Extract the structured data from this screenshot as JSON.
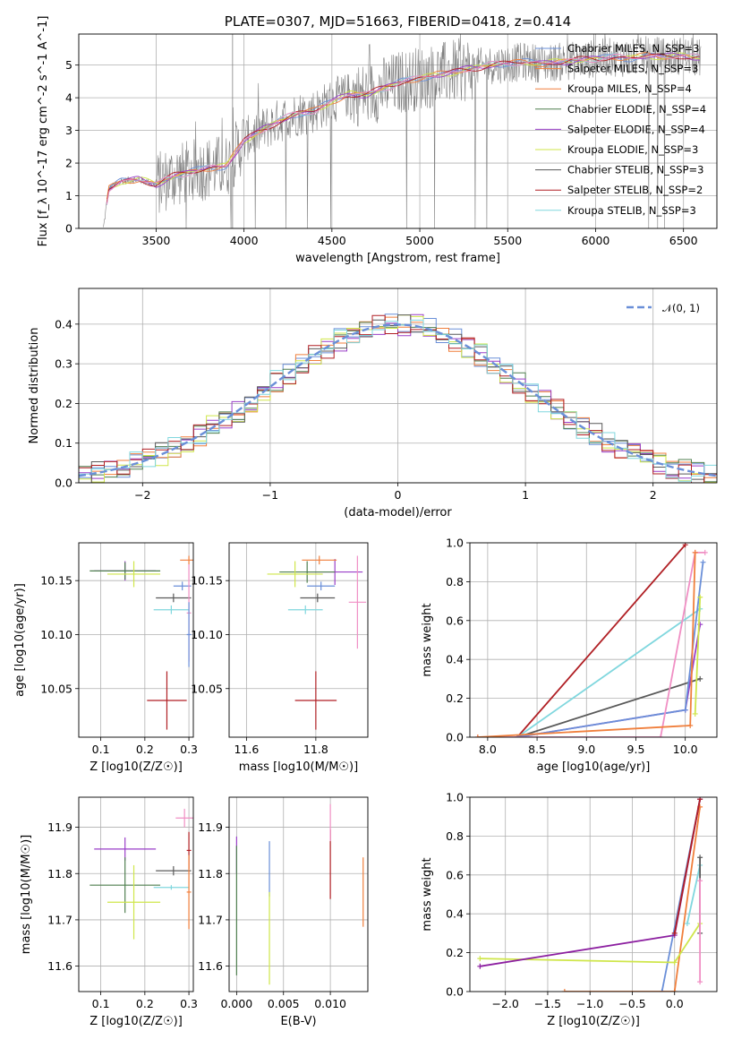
{
  "colors": {
    "c0": "#6a8fd8",
    "c1": "#f07f3c",
    "c2": "#4f7f4f",
    "c3": "#9a3fc8",
    "c4": "#cfe64a",
    "c5": "#595959",
    "c6": "#b01f24",
    "c7": "#80d7de",
    "c8": "#f08fc4",
    "grid": "#b0b0b0",
    "gray": "#808080",
    "purple": "#8c1fa0"
  },
  "legend_series": [
    {
      "label": "Chabrier MILES, N_SSP=3",
      "color": "c0"
    },
    {
      "label": "Salpeter MILES, N_SSP=3",
      "color": "c1"
    },
    {
      "label": "Kroupa MILES, N_SSP=4",
      "color": "c1"
    },
    {
      "label": "Chabrier ELODIE, N_SSP=4",
      "color": "c2"
    },
    {
      "label": "Salpeter ELODIE, N_SSP=4",
      "color": "c3"
    },
    {
      "label": "Kroupa ELODIE, N_SSP=3",
      "color": "c4"
    },
    {
      "label": "Chabrier STELIB, N_SSP=3",
      "color": "c5"
    },
    {
      "label": "Salpeter STELIB, N_SSP=2",
      "color": "c6"
    },
    {
      "label": "Kroupa STELIB, N_SSP=3",
      "color": "c7"
    }
  ],
  "chart_data": [
    {
      "id": "spectrum",
      "type": "line",
      "title": "PLATE=0307, MJD=51663, FIBERID=0418, z=0.414",
      "xlabel": "wavelength [Angstrom, rest frame]",
      "ylabel": "Flux [f_λ 10^-17 erg cm^-2 s^-1 A^-1]",
      "xlim": [
        3060,
        6690
      ],
      "ylim": [
        0,
        5.95
      ],
      "xticks": [
        3500,
        4000,
        4500,
        5000,
        5500,
        6000,
        6500
      ],
      "yticks": [
        0,
        1,
        2,
        3,
        4,
        5
      ],
      "continuum": {
        "x": [
          3200,
          3230,
          3300,
          3400,
          3500,
          3600,
          3700,
          3800,
          3900,
          4000,
          4100,
          4200,
          4300,
          4400,
          4500,
          4600,
          4700,
          4800,
          4900,
          5000,
          5100,
          5200,
          5300,
          5400,
          5500,
          5600,
          5700,
          5800,
          5900,
          6000,
          6100,
          6200,
          6300,
          6400,
          6500,
          6600
        ],
        "y": [
          0,
          1.2,
          1.45,
          1.5,
          1.35,
          1.6,
          1.75,
          1.85,
          1.9,
          2.7,
          3.0,
          3.3,
          3.5,
          3.6,
          3.9,
          4.1,
          4.1,
          4.3,
          4.5,
          4.6,
          4.7,
          4.8,
          4.9,
          5.0,
          5.05,
          5.1,
          5.05,
          5.1,
          5.15,
          5.2,
          5.25,
          5.2,
          5.3,
          5.25,
          5.3,
          5.2
        ]
      },
      "legend_location": "upper right"
    },
    {
      "id": "residuals",
      "type": "bar",
      "xlabel": "(data-model)/error",
      "ylabel": "Normed distribution",
      "xlim": [
        -2.5,
        2.5
      ],
      "ylim": [
        0,
        0.49
      ],
      "xticks": [
        -2,
        -1,
        0,
        1,
        2
      ],
      "yticks": [
        0.0,
        0.1,
        0.2,
        0.3,
        0.4
      ],
      "bin_width": 0.1,
      "reference_curve": {
        "label": "𝒩(0, 1)",
        "mean": 0,
        "std": 1,
        "color": "c0"
      },
      "legend_location": "upper right"
    },
    {
      "id": "age_vs_Z",
      "type": "scatter",
      "xlabel": "Z [log10(Z/Z☉)]",
      "ylabel": "age  [log10(age/yr)]",
      "xlim": [
        0.05,
        0.31
      ],
      "ylim": [
        10.005,
        10.185
      ],
      "xticks": [
        0.1,
        0.2,
        0.3
      ],
      "yticks": [
        10.05,
        10.1,
        10.15
      ],
      "points": [
        {
          "color": "c6",
          "x": 0.25,
          "y": 10.039,
          "xerr": 0.045,
          "yerr": 0.027
        },
        {
          "color": "c3",
          "x": 0.155,
          "y": 10.159,
          "xerr": 0.07,
          "yerr": 0.009
        },
        {
          "color": "c2",
          "x": 0.155,
          "y": 10.159,
          "xerr": 0.08,
          "yerr": 0.008
        },
        {
          "color": "c4",
          "x": 0.175,
          "y": 10.156,
          "xerr": 0.06,
          "yerr": 0.012
        },
        {
          "color": "c5",
          "x": 0.265,
          "y": 10.134,
          "xerr": 0.04,
          "yerr": 0.004
        },
        {
          "color": "c7",
          "x": 0.26,
          "y": 10.123,
          "xerr": 0.04,
          "yerr": 0.004
        },
        {
          "color": "c0",
          "x": 0.285,
          "y": 10.145,
          "xerr": 0.02,
          "yerr": 0.004
        },
        {
          "color": "c1",
          "x": 0.3,
          "y": 10.169,
          "xerr": 0.02,
          "yerr": 0.004
        },
        {
          "color": "c8",
          "x": 0.3,
          "y": 10.12,
          "xerr": 0.005,
          "yerr": 0.045
        },
        {
          "color": "c0",
          "x": 0.3,
          "y": 10.1,
          "xerr": 0.005,
          "yerr": 0.03
        }
      ]
    },
    {
      "id": "age_vs_mass",
      "type": "scatter",
      "xlabel": "mass [log10(M/M☉)]",
      "ylabel": "",
      "xlim": [
        11.55,
        11.95
      ],
      "ylim": [
        10.005,
        10.185
      ],
      "xticks": [
        11.6,
        11.8
      ],
      "yticks": [
        10.05,
        10.1,
        10.15
      ],
      "points": [
        {
          "color": "c6",
          "x": 11.8,
          "y": 10.039,
          "xerr": 0.06,
          "yerr": 0.027
        },
        {
          "color": "c3",
          "x": 11.855,
          "y": 10.158,
          "xerr": 0.08,
          "yerr": 0.012
        },
        {
          "color": "c2",
          "x": 11.775,
          "y": 10.158,
          "xerr": 0.08,
          "yerr": 0.01
        },
        {
          "color": "c4",
          "x": 11.74,
          "y": 10.156,
          "xerr": 0.08,
          "yerr": 0.012
        },
        {
          "color": "c5",
          "x": 11.805,
          "y": 10.134,
          "xerr": 0.05,
          "yerr": 0.004
        },
        {
          "color": "c7",
          "x": 11.77,
          "y": 10.123,
          "xerr": 0.05,
          "yerr": 0.004
        },
        {
          "color": "c0",
          "x": 11.815,
          "y": 10.145,
          "xerr": 0.04,
          "yerr": 0.004
        },
        {
          "color": "c1",
          "x": 11.81,
          "y": 10.169,
          "xerr": 0.05,
          "yerr": 0.004
        },
        {
          "color": "c8",
          "x": 11.92,
          "y": 10.13,
          "xerr": 0.025,
          "yerr": 0.043
        }
      ]
    },
    {
      "id": "weight_vs_age",
      "type": "line",
      "xlabel": "age  [log10(age/yr)]",
      "ylabel": "mass weight",
      "xlim": [
        7.82,
        10.32
      ],
      "ylim": [
        0,
        1
      ],
      "xticks": [
        8.0,
        8.5,
        9.0,
        9.5,
        10.0
      ],
      "yticks": [
        0.0,
        0.2,
        0.4,
        0.6,
        0.8,
        1.0
      ],
      "series": [
        {
          "color": "c6",
          "x": [
            8.3,
            10.0
          ],
          "y": [
            0.0,
            0.99
          ]
        },
        {
          "color": "c7",
          "x": [
            8.3,
            10.15
          ],
          "y": [
            0.0,
            0.66
          ]
        },
        {
          "color": "c5",
          "x": [
            8.3,
            10.15
          ],
          "y": [
            0.0,
            0.3
          ]
        },
        {
          "color": "c3",
          "x": [
            8.3,
            10.0,
            10.15
          ],
          "y": [
            0.0,
            0.14,
            0.58
          ]
        },
        {
          "color": "c0",
          "x": [
            8.3,
            10.0,
            10.18
          ],
          "y": [
            0.0,
            0.14,
            0.9
          ]
        },
        {
          "color": "c8",
          "x": [
            7.9,
            9.75,
            10.1,
            10.2
          ],
          "y": [
            0.0,
            0.0,
            0.95,
            0.95
          ]
        },
        {
          "color": "c1",
          "x": [
            7.9,
            10.05,
            10.1
          ],
          "y": [
            0.0,
            0.06,
            0.95
          ]
        },
        {
          "color": "c4",
          "x": [
            10.1,
            10.15
          ],
          "y": [
            0.12,
            0.72
          ]
        }
      ]
    },
    {
      "id": "mass_vs_Z",
      "type": "scatter",
      "xlabel": "Z [log10(Z/Z☉)]",
      "ylabel": "mass [log10(M/M☉)]",
      "xlim": [
        0.05,
        0.31
      ],
      "ylim": [
        11.545,
        11.965
      ],
      "xticks": [
        0.1,
        0.2,
        0.3
      ],
      "yticks": [
        11.6,
        11.7,
        11.8,
        11.9
      ],
      "points": [
        {
          "color": "c3",
          "x": 0.155,
          "y": 11.853,
          "xerr": 0.07,
          "yerr": 0.025
        },
        {
          "color": "c2",
          "x": 0.155,
          "y": 11.775,
          "xerr": 0.08,
          "yerr": 0.06
        },
        {
          "color": "c4",
          "x": 0.175,
          "y": 11.738,
          "xerr": 0.06,
          "yerr": 0.08
        },
        {
          "color": "c5",
          "x": 0.265,
          "y": 11.806,
          "xerr": 0.04,
          "yerr": 0.01
        },
        {
          "color": "c7",
          "x": 0.26,
          "y": 11.77,
          "xerr": 0.04,
          "yerr": 0.005
        },
        {
          "color": "c8",
          "x": 0.29,
          "y": 11.92,
          "xerr": 0.02,
          "yerr": 0.02
        },
        {
          "color": "c6",
          "x": 0.3,
          "y": 11.85,
          "xerr": 0.005,
          "yerr": 0.04
        },
        {
          "color": "c1",
          "x": 0.3,
          "y": 11.76,
          "xerr": 0.005,
          "yerr": 0.08
        }
      ]
    },
    {
      "id": "mass_vs_ebv",
      "type": "scatter",
      "xlabel": "E(B-V)",
      "ylabel": "",
      "xlim": [
        -0.0008,
        0.014
      ],
      "ylim": [
        11.545,
        11.965
      ],
      "xticks": [
        0.0,
        0.005,
        0.01
      ],
      "yticks": [
        11.6,
        11.7,
        11.8,
        11.9
      ],
      "points": [
        {
          "color": "c3",
          "x": 0.0,
          "y": 11.84,
          "xerr": 0,
          "yerr": 0.04
        },
        {
          "color": "c2",
          "x": 0.0,
          "y": 11.72,
          "xerr": 0,
          "yerr": 0.14
        },
        {
          "color": "c0",
          "x": 0.0035,
          "y": 11.81,
          "xerr": 0,
          "yerr": 0.06
        },
        {
          "color": "c4",
          "x": 0.0035,
          "y": 11.66,
          "xerr": 0,
          "yerr": 0.1
        },
        {
          "color": "c6",
          "x": 0.01,
          "y": 11.82,
          "xerr": 0,
          "yerr": 0.075
        },
        {
          "color": "c8",
          "x": 0.01,
          "y": 11.91,
          "xerr": 0,
          "yerr": 0.04
        },
        {
          "color": "c1",
          "x": 0.0135,
          "y": 11.76,
          "xerr": 0,
          "yerr": 0.075
        }
      ]
    },
    {
      "id": "weight_vs_Z",
      "type": "line",
      "xlabel": "Z [log10(Z/Z☉)]",
      "ylabel": "mass weight",
      "xlim": [
        -2.42,
        0.5
      ],
      "ylim": [
        0,
        1
      ],
      "xticks": [
        -2.0,
        -1.5,
        -1.0,
        -0.5,
        0.0
      ],
      "yticks": [
        0.0,
        0.2,
        0.4,
        0.6,
        0.8,
        1.0
      ],
      "series": [
        {
          "color": "c0",
          "x": [
            -0.15,
            0.3
          ],
          "y": [
            0.0,
            0.99
          ]
        },
        {
          "color": "c1",
          "x": [
            -1.3,
            0.0,
            0.3
          ],
          "y": [
            0.0,
            0.0,
            0.95
          ]
        },
        {
          "color": "c4",
          "x": [
            -2.3,
            0.0,
            0.3
          ],
          "y": [
            0.17,
            0.15,
            0.35
          ]
        },
        {
          "color": "purple",
          "x": [
            -2.3,
            0.0,
            0.3
          ],
          "y": [
            0.13,
            0.29,
            0.99
          ]
        },
        {
          "color": "c6",
          "x": [
            0.0,
            0.3
          ],
          "y": [
            0.3,
            0.99
          ]
        },
        {
          "color": "c7",
          "x": [
            0.15,
            0.3
          ],
          "y": [
            0.35,
            0.65
          ]
        },
        {
          "color": "c5",
          "x": [
            0.3,
            0.3
          ],
          "y": [
            0.3,
            0.69
          ]
        },
        {
          "color": "c8",
          "x": [
            0.3,
            0.3
          ],
          "y": [
            0.05,
            0.57
          ]
        }
      ]
    }
  ]
}
